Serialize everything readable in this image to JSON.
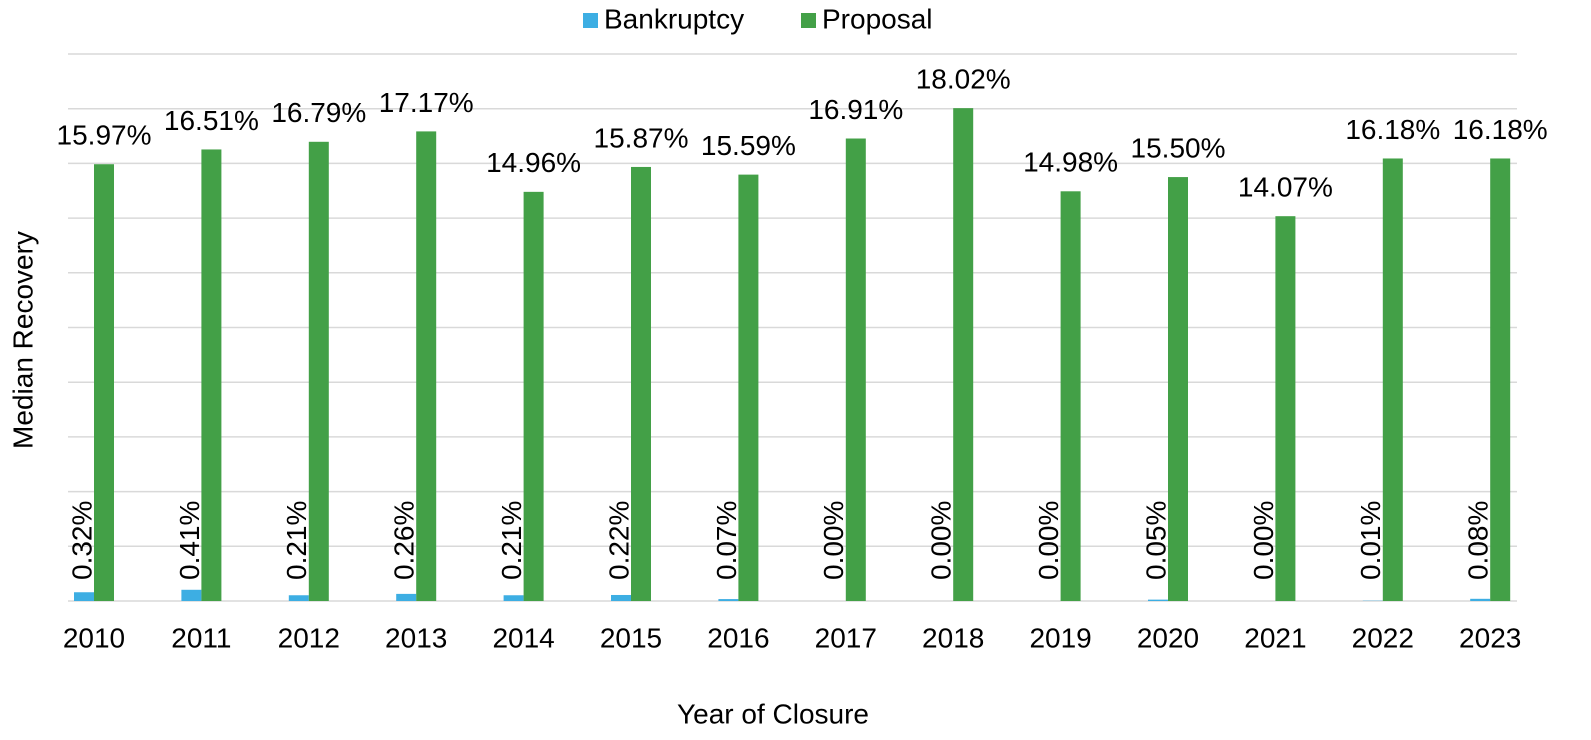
{
  "chart_data": {
    "type": "bar",
    "y_axis_label": "Median Recovery",
    "x_axis_label": "Year of Closure",
    "categories": [
      "2010",
      "2011",
      "2012",
      "2013",
      "2014",
      "2015",
      "2016",
      "2017",
      "2018",
      "2019",
      "2020",
      "2021",
      "2022",
      "2023"
    ],
    "series": [
      {
        "name": "Bankruptcy",
        "color": "#3daee3",
        "values": [
          0.32,
          0.41,
          0.21,
          0.26,
          0.21,
          0.22,
          0.07,
          0,
          0,
          0,
          0.05,
          0,
          0.01,
          0.08
        ],
        "value_labels": [
          "0.32%",
          "0.41%",
          "0.21%",
          "0.26%",
          "0.21%",
          "0.22%",
          "0.07%",
          "0.00%",
          "0.00%",
          "0.00%",
          "0.05%",
          "0.00%",
          "0.01%",
          "0.08%"
        ]
      },
      {
        "name": "Proposal",
        "color": "#43a047",
        "values": [
          15.97,
          16.51,
          16.79,
          17.17,
          14.96,
          15.87,
          15.59,
          16.91,
          18.02,
          14.98,
          15.5,
          14.07,
          16.18,
          16.18
        ],
        "value_labels": [
          "15.97%",
          "16.51%",
          "16.79%",
          "17.17%",
          "14.96%",
          "15.87%",
          "15.59%",
          "16.91%",
          "18.02%",
          "14.98%",
          "15.50%",
          "14.07%",
          "16.18%",
          "16.18%"
        ]
      }
    ],
    "ylim": [
      0,
      20
    ],
    "yticks": [
      0,
      2,
      4,
      6,
      8,
      10,
      12,
      14,
      16,
      18,
      20
    ],
    "grid": true,
    "legend": "top"
  }
}
